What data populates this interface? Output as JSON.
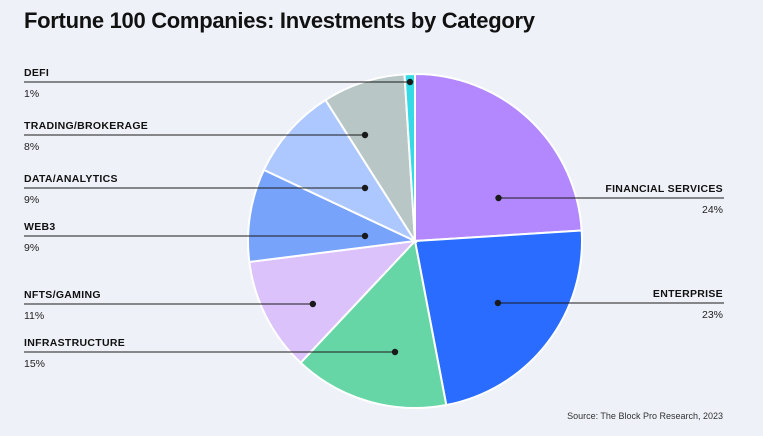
{
  "title": "Fortune 100 Companies: Investments by Category",
  "source": "Source: The Block Pro Research, 2023",
  "chart_data": {
    "type": "pie",
    "title": "Fortune 100 Companies: Investments by Category",
    "slices": [
      {
        "label": "FINANCIAL SERVICES",
        "value": 24,
        "display": "24%",
        "color": "#b388ff",
        "side": "right"
      },
      {
        "label": "ENTERPRISE",
        "value": 23,
        "display": "23%",
        "color": "#2a6cff",
        "side": "right"
      },
      {
        "label": "INFRASTRUCTURE",
        "value": 15,
        "display": "15%",
        "color": "#66d6a6",
        "side": "left"
      },
      {
        "label": "NFTS/GAMING",
        "value": 11,
        "display": "11%",
        "color": "#dcc2fb",
        "side": "left"
      },
      {
        "label": "WEB3",
        "value": 9,
        "display": "9%",
        "color": "#78a3fb",
        "side": "left"
      },
      {
        "label": "DATA/ANALYTICS",
        "value": 9,
        "display": "9%",
        "color": "#adc8ff",
        "side": "left"
      },
      {
        "label": "TRADING/BROKERAGE",
        "value": 8,
        "display": "8%",
        "color": "#b8c6c6",
        "side": "left"
      },
      {
        "label": "DEFI",
        "value": 1,
        "display": "1%",
        "color": "#36d9e6",
        "side": "left"
      }
    ],
    "start_angle_deg": 0,
    "direction": "clockwise",
    "legend": "callout labels"
  }
}
